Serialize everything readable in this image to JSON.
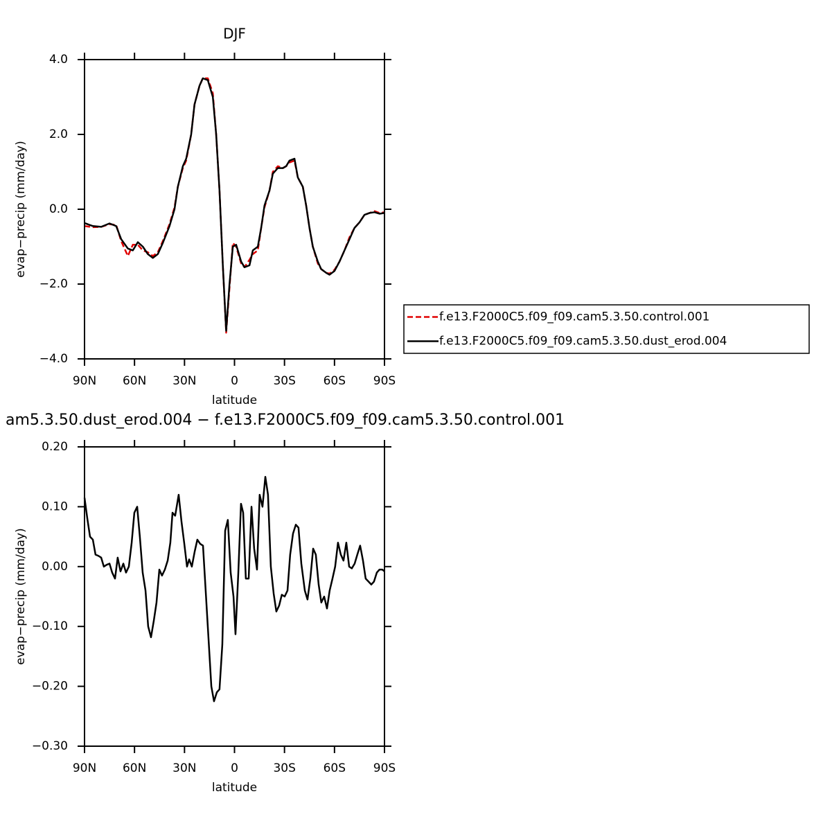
{
  "chart_data": [
    {
      "type": "line",
      "title": "DJF",
      "xlabel": "latitude",
      "ylabel": "evap−precip (mm/day)",
      "xlim": [
        90,
        -90
      ],
      "xticks": [
        {
          "value": 90,
          "label": "90N"
        },
        {
          "value": 60,
          "label": "60N"
        },
        {
          "value": 30,
          "label": "30N"
        },
        0,
        {
          "value": -30,
          "label": "30S"
        },
        {
          "value": -60,
          "label": "60S"
        },
        {
          "value": -90,
          "label": "90S"
        }
      ],
      "ylim": [
        -4,
        4
      ],
      "yticks": [
        {
          "value": -4,
          "label": "−4.0"
        },
        {
          "value": -2,
          "label": "−2.0"
        },
        {
          "value": 0,
          "label": "0.0"
        },
        {
          "value": 2,
          "label": "2.0"
        },
        {
          "value": 4,
          "label": "4.0"
        }
      ],
      "legend": "outside-right",
      "x": [
        90,
        85,
        80,
        75,
        71,
        68,
        64,
        61,
        58,
        55,
        52,
        49,
        46,
        43,
        39,
        36,
        34,
        31,
        29,
        26,
        24,
        21,
        19,
        16,
        13,
        11,
        9,
        7,
        5,
        3,
        1,
        -1,
        -4,
        -6,
        -9,
        -11,
        -14,
        -16,
        -18,
        -21,
        -23,
        -26,
        -29,
        -31,
        -33,
        -36,
        -38,
        -41,
        -43,
        -45,
        -47,
        -50,
        -52,
        -55,
        -57,
        -60,
        -63,
        -66,
        -69,
        -72,
        -75,
        -78,
        -81,
        -84,
        -87,
        -90
      ],
      "series": [
        {
          "name": "f.e13.F2000C5.f09_f09.cam5.3.50.control.001",
          "color": "#e00000",
          "dash": true,
          "values": [
            -0.45,
            -0.48,
            -0.47,
            -0.4,
            -0.42,
            -0.85,
            -1.25,
            -0.95,
            -0.95,
            -1.1,
            -1.15,
            -1.25,
            -1.15,
            -0.85,
            -0.4,
            0.05,
            0.6,
            1.1,
            1.3,
            2.0,
            2.8,
            3.3,
            3.5,
            3.5,
            3.1,
            2.0,
            0.5,
            -1.5,
            -3.3,
            -2.1,
            -0.9,
            -1.0,
            -1.45,
            -1.55,
            -1.35,
            -1.2,
            -1.1,
            -0.5,
            0.05,
            0.5,
            1.0,
            1.15,
            1.1,
            1.15,
            1.25,
            1.3,
            0.85,
            0.6,
            0.1,
            -0.5,
            -1.0,
            -1.45,
            -1.6,
            -1.7,
            -1.72,
            -1.62,
            -1.4,
            -1.1,
            -0.75,
            -0.5,
            -0.35,
            -0.15,
            -0.1,
            -0.05,
            -0.1,
            -0.08
          ]
        },
        {
          "name": "f.e13.F2000C5.f09_f09.cam5.3.50.dust_erod.004",
          "color": "#000000",
          "dash": false,
          "values": [
            -0.37,
            -0.45,
            -0.47,
            -0.38,
            -0.45,
            -0.8,
            -1.05,
            -1.1,
            -0.88,
            -1.0,
            -1.2,
            -1.3,
            -1.2,
            -0.9,
            -0.45,
            0.0,
            0.6,
            1.15,
            1.35,
            2.0,
            2.8,
            3.3,
            3.5,
            3.45,
            3.0,
            2.0,
            0.5,
            -1.5,
            -3.25,
            -2.0,
            -1.0,
            -0.95,
            -1.4,
            -1.55,
            -1.5,
            -1.1,
            -1.0,
            -0.5,
            0.1,
            0.5,
            0.95,
            1.1,
            1.1,
            1.15,
            1.3,
            1.35,
            0.85,
            0.6,
            0.1,
            -0.5,
            -1.0,
            -1.4,
            -1.6,
            -1.7,
            -1.75,
            -1.65,
            -1.4,
            -1.1,
            -0.8,
            -0.5,
            -0.35,
            -0.15,
            -0.1,
            -0.08,
            -0.12,
            -0.1
          ]
        }
      ]
    },
    {
      "type": "line",
      "title": "am5.3.50.dust_erod.004 − f.e13.F2000C5.f09_f09.cam5.3.50.control.001",
      "xlabel": "latitude",
      "ylabel": "evap−precip (mm/day)",
      "xlim": [
        90,
        -90
      ],
      "xticks": [
        {
          "value": 90,
          "label": "90N"
        },
        {
          "value": 60,
          "label": "60N"
        },
        {
          "value": 30,
          "label": "30N"
        },
        0,
        {
          "value": -30,
          "label": "30S"
        },
        {
          "value": -60,
          "label": "60S"
        },
        {
          "value": -90,
          "label": "90S"
        }
      ],
      "ylim": [
        -0.3,
        0.2
      ],
      "yticks": [
        {
          "value": -0.3,
          "label": "−0.30"
        },
        {
          "value": -0.2,
          "label": "−0.20"
        },
        {
          "value": -0.1,
          "label": "−0.10"
        },
        {
          "value": 0,
          "label": "0.00"
        },
        {
          "value": 0.1,
          "label": "0.10"
        },
        {
          "value": 0.2,
          "label": "0.20"
        }
      ],
      "x": [
        90,
        88.3,
        86.7,
        85.0,
        83.4,
        81.7,
        80.0,
        78.4,
        76.7,
        75.0,
        73.4,
        71.7,
        70.1,
        68.4,
        66.7,
        65.1,
        63.4,
        61.7,
        60.1,
        58.4,
        56.8,
        55.1,
        53.4,
        51.8,
        50.1,
        48.4,
        46.8,
        45.1,
        43.5,
        41.8,
        40.1,
        38.5,
        37.2,
        35.6,
        33.5,
        31.8,
        30.2,
        28.5,
        27.2,
        25.6,
        23.9,
        22.3,
        20.6,
        18.9,
        17.3,
        15.6,
        13.9,
        12.3,
        10.6,
        9.0,
        7.3,
        5.6,
        4.0,
        2.3,
        0.6,
        -0.6,
        -2.3,
        -3.9,
        -5.2,
        -6.8,
        -8.5,
        -10.2,
        -11.8,
        -13.5,
        -15.1,
        -16.8,
        -18.5,
        -20.1,
        -21.8,
        -23.5,
        -25.1,
        -26.8,
        -28.4,
        -30.1,
        -31.8,
        -33.4,
        -35.1,
        -36.8,
        -38.4,
        -40.1,
        -42.2,
        -43.8,
        -45.5,
        -47.2,
        -48.8,
        -50.5,
        -52.1,
        -53.8,
        -55.5,
        -57.1,
        -58.8,
        -60.4,
        -62.1,
        -63.8,
        -65.4,
        -67.1,
        -68.8,
        -70.4,
        -72.1,
        -73.7,
        -75.4,
        -77.1,
        -78.7,
        -80.4,
        -82.1,
        -83.7,
        -85.4,
        -87.0,
        -88.7,
        -90
      ],
      "series": [
        {
          "color": "#000000",
          "dash": false,
          "values": [
            0.115,
            0.08,
            0.05,
            0.045,
            0.02,
            0.018,
            0.015,
            0.0,
            0.003,
            0.005,
            -0.01,
            -0.02,
            0.015,
            -0.008,
            0.005,
            -0.01,
            0.0,
            0.04,
            0.09,
            0.1,
            0.05,
            -0.01,
            -0.04,
            -0.1,
            -0.118,
            -0.09,
            -0.06,
            -0.005,
            -0.015,
            -0.005,
            0.01,
            0.04,
            0.09,
            0.085,
            0.12,
            0.075,
            0.04,
            0.0,
            0.012,
            0.0,
            0.025,
            0.045,
            0.038,
            0.035,
            -0.04,
            -0.12,
            -0.2,
            -0.225,
            -0.21,
            -0.205,
            -0.13,
            0.06,
            0.078,
            -0.01,
            -0.05,
            -0.113,
            -0.01,
            0.105,
            0.09,
            -0.02,
            -0.02,
            0.1,
            0.03,
            -0.005,
            0.12,
            0.1,
            0.15,
            0.12,
            0.0,
            -0.045,
            -0.075,
            -0.065,
            -0.047,
            -0.05,
            -0.04,
            0.02,
            0.055,
            0.07,
            0.065,
            0.005,
            -0.04,
            -0.055,
            -0.02,
            0.03,
            0.02,
            -0.03,
            -0.06,
            -0.05,
            -0.07,
            -0.04,
            -0.02,
            0.0,
            0.04,
            0.02,
            0.01,
            0.04,
            0.0,
            -0.003,
            0.005,
            0.02,
            0.035,
            0.01,
            -0.02,
            -0.025,
            -0.03,
            -0.025,
            -0.01,
            -0.005,
            -0.005,
            -0.008
          ]
        }
      ]
    }
  ]
}
